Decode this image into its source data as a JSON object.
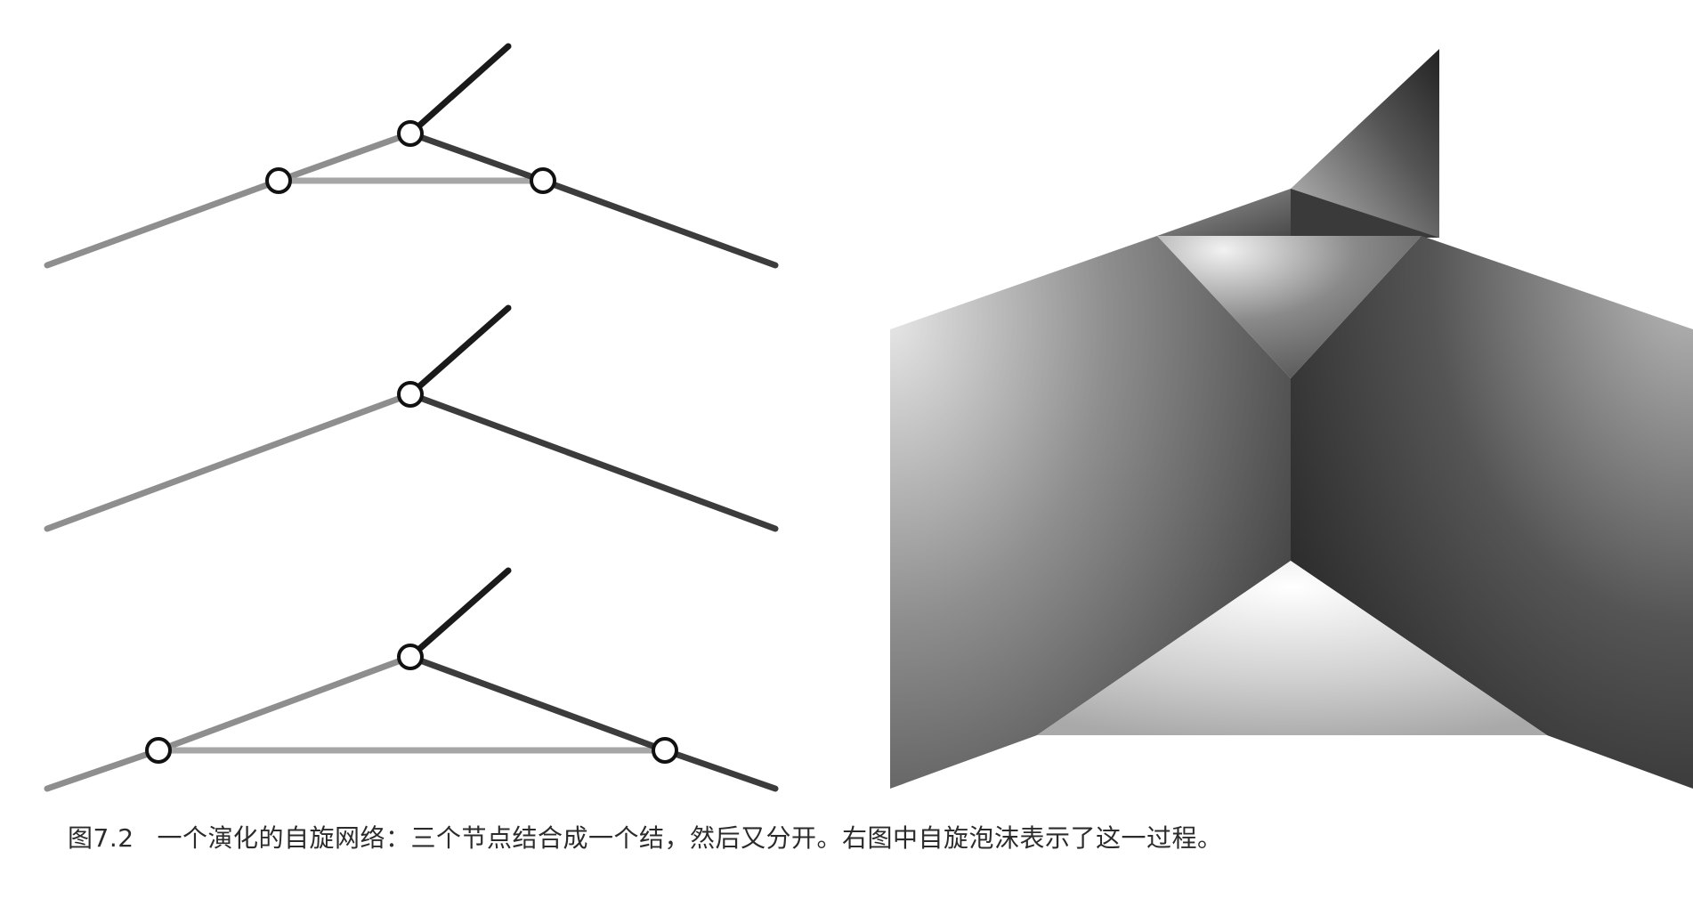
{
  "caption": {
    "figure_number": "图7.2",
    "text": "一个演化的自旋网络：三个节点结合成一个结，然后又分开。右图中自旋泡沫表示了这一过程。"
  },
  "colors": {
    "edge_light": "#a6a6a6",
    "edge_mid": "#8e8e8e",
    "edge_dark": "#3c3c3c",
    "edge_black": "#1a1a1a",
    "node_fill": "#ffffff",
    "node_stroke": "#111111"
  }
}
